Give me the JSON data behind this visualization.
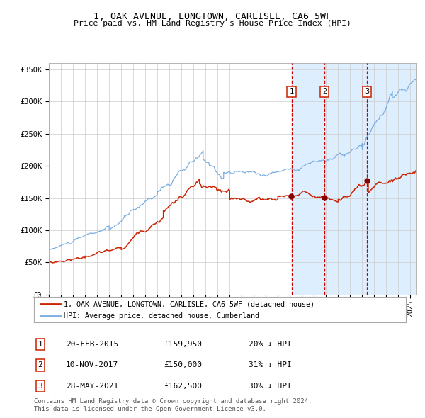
{
  "title": "1, OAK AVENUE, LONGTOWN, CARLISLE, CA6 5WF",
  "subtitle": "Price paid vs. HM Land Registry's House Price Index (HPI)",
  "ylim": [
    0,
    360000
  ],
  "xlim_start": 1995.0,
  "xlim_end": 2025.5,
  "yticks": [
    0,
    50000,
    100000,
    150000,
    200000,
    250000,
    300000,
    350000
  ],
  "ytick_labels": [
    "£0",
    "£50K",
    "£100K",
    "£150K",
    "£200K",
    "£250K",
    "£300K",
    "£350K"
  ],
  "hpi_color": "#7aade0",
  "price_color": "#cc2200",
  "sale_marker_color": "#880000",
  "vline_color": "#cc0000",
  "vspan_color": "#ddeeff",
  "grid_color": "#cccccc",
  "background_color": "#ffffff",
  "legend_label_price": "1, OAK AVENUE, LONGTOWN, CARLISLE, CA6 5WF (detached house)",
  "legend_label_hpi": "HPI: Average price, detached house, Cumberland",
  "sales": [
    {
      "num": 1,
      "date": "20-FEB-2015",
      "year": 2015.13,
      "price": 159950,
      "hpi_pct": "20% ↓ HPI"
    },
    {
      "num": 2,
      "date": "10-NOV-2017",
      "year": 2017.86,
      "price": 150000,
      "hpi_pct": "31% ↓ HPI"
    },
    {
      "num": 3,
      "date": "28-MAY-2021",
      "year": 2021.41,
      "price": 162500,
      "hpi_pct": "30% ↓ HPI"
    }
  ],
  "footer_line1": "Contains HM Land Registry data © Crown copyright and database right 2024.",
  "footer_line2": "This data is licensed under the Open Government Licence v3.0."
}
